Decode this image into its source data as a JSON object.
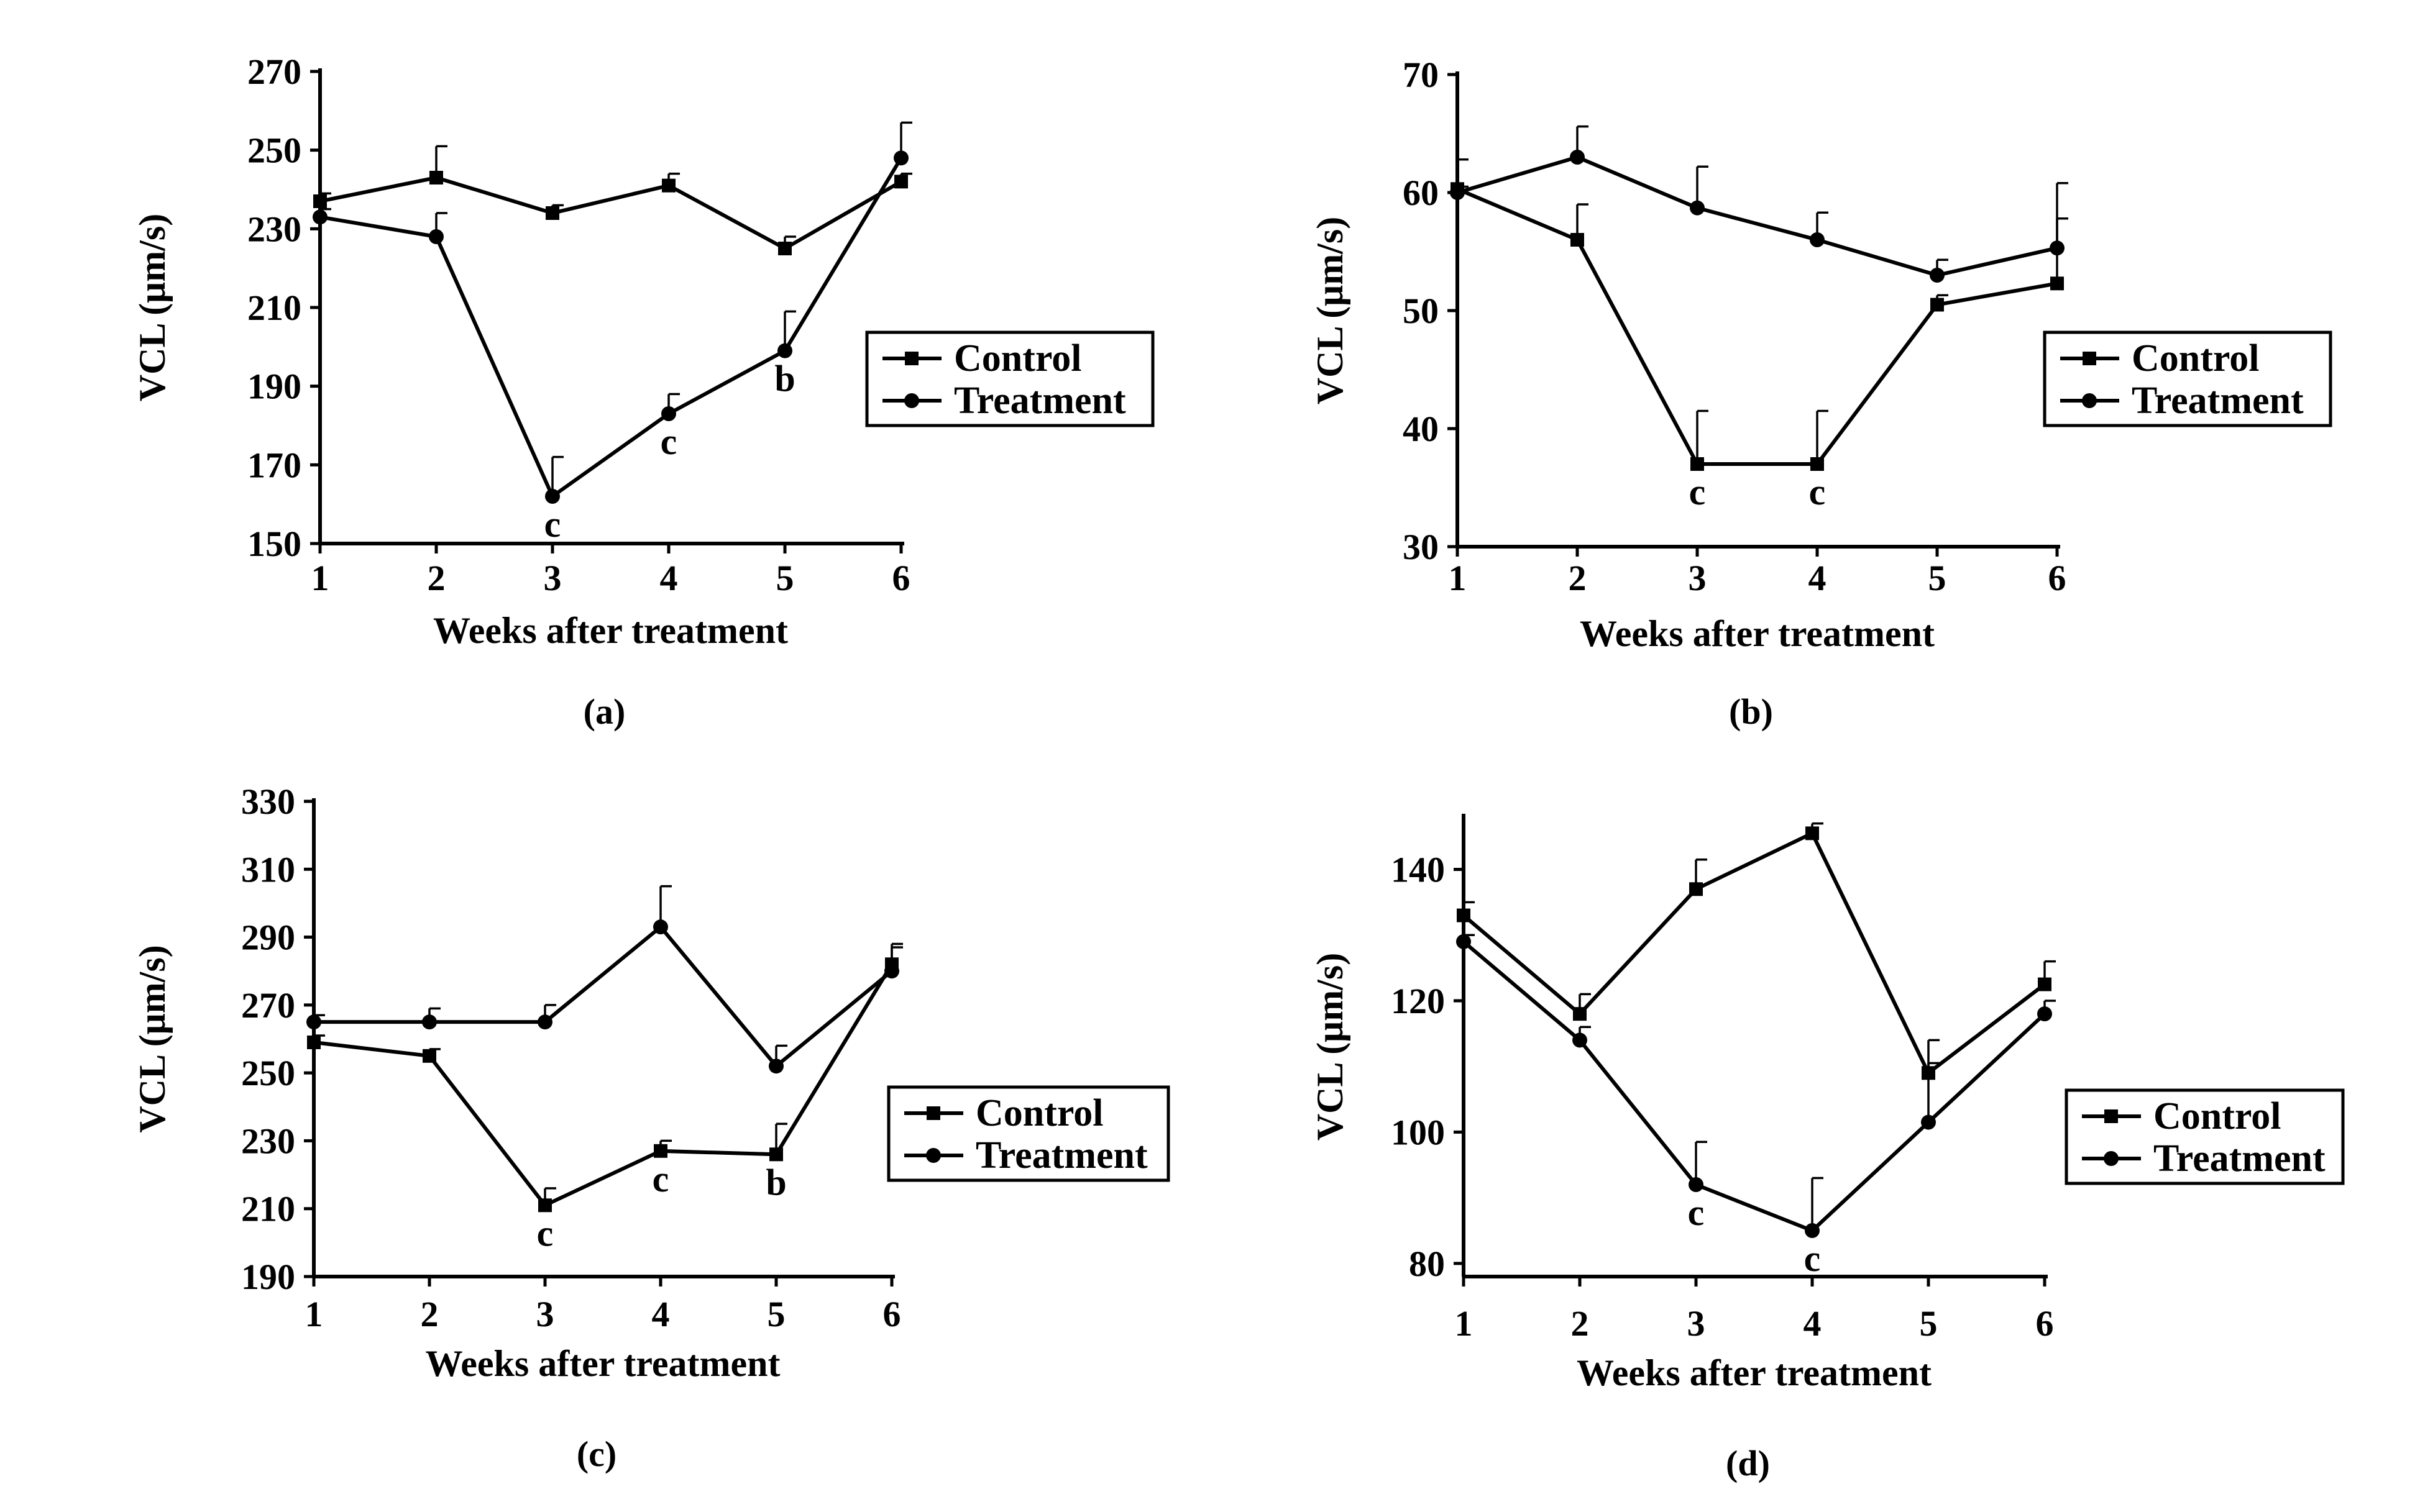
{
  "chart_data": [
    {
      "type": "line",
      "panel": "(a)",
      "xlabel": "Weeks after treatment",
      "ylabel": "VCL (μm/s)",
      "x": [
        1,
        2,
        3,
        4,
        5,
        6
      ],
      "ylim": [
        150,
        270
      ],
      "yticks": [
        150,
        170,
        190,
        210,
        230,
        250,
        270
      ],
      "legend": [
        "Control",
        "Treatment"
      ],
      "legend_position": "right",
      "grid": false,
      "series": [
        {
          "name": "Control",
          "marker": "square",
          "values": [
            237,
            243,
            234,
            241,
            225,
            242
          ],
          "errors": [
            2,
            8,
            2,
            3,
            3,
            2
          ]
        },
        {
          "name": "Treatment",
          "marker": "circle",
          "values": [
            233,
            228,
            162,
            183,
            199,
            248
          ],
          "errors": [
            2,
            6,
            10,
            5,
            10,
            9
          ]
        }
      ],
      "annotations": [
        {
          "x": 3,
          "text": "c"
        },
        {
          "x": 4,
          "text": "c"
        },
        {
          "x": 5,
          "text": "b"
        }
      ]
    },
    {
      "type": "line",
      "panel": "(b)",
      "xlabel": "Weeks after treatment",
      "ylabel": "VCL (μm/s)",
      "x": [
        1,
        2,
        3,
        4,
        5,
        6
      ],
      "ylim": [
        30,
        70
      ],
      "yticks": [
        30,
        40,
        50,
        60,
        70
      ],
      "legend": [
        "Control",
        "Treatment"
      ],
      "legend_position": "right",
      "grid": false,
      "series": [
        {
          "name": "Control",
          "marker": "square",
          "values": [
            60.3,
            56,
            37,
            37,
            50.5,
            52.3
          ],
          "errors": [
            2.5,
            3,
            4.5,
            4.5,
            0.8,
            5.5
          ]
        },
        {
          "name": "Treatment",
          "marker": "circle",
          "values": [
            60,
            63,
            58.7,
            56,
            53,
            55.3
          ],
          "errors": [
            0.5,
            2.6,
            3.5,
            2.3,
            1.3,
            5.5
          ]
        }
      ],
      "annotations": [
        {
          "x": 3,
          "text": "c"
        },
        {
          "x": 4,
          "text": "c"
        }
      ]
    },
    {
      "type": "line",
      "panel": "(c)",
      "xlabel": "Weeks after treatment",
      "ylabel": "VCL (μm/s)",
      "x": [
        1,
        2,
        3,
        4,
        5,
        6
      ],
      "ylim": [
        190,
        330
      ],
      "yticks": [
        190,
        210,
        230,
        250,
        270,
        290,
        310,
        330
      ],
      "legend": [
        "Control",
        "Treatment"
      ],
      "legend_position": "right",
      "grid": false,
      "series": [
        {
          "name": "Control",
          "marker": "square",
          "values": [
            259,
            255,
            211,
            227,
            226,
            282
          ],
          "errors": [
            2,
            2,
            5,
            3,
            9,
            6
          ]
        },
        {
          "name": "Treatment",
          "marker": "circle",
          "values": [
            265,
            265,
            265,
            293,
            252,
            280
          ],
          "errors": [
            2,
            4,
            5,
            12,
            6,
            7
          ]
        }
      ],
      "annotations": [
        {
          "x": 3,
          "text": "c"
        },
        {
          "x": 4,
          "text": "c"
        },
        {
          "x": 5,
          "text": "b"
        }
      ]
    },
    {
      "type": "line",
      "panel": "(d)",
      "xlabel": "Weeks after treatment",
      "ylabel": "VCL (μm/s)",
      "x": [
        1,
        2,
        3,
        4,
        5,
        6
      ],
      "ylim": [
        78,
        148
      ],
      "yticks": [
        80,
        100,
        120,
        140
      ],
      "legend": [
        "Control",
        "Treatment"
      ],
      "legend_position": "right",
      "grid": false,
      "series": [
        {
          "name": "Control",
          "marker": "square",
          "values": [
            133,
            118,
            137,
            145.5,
            109,
            122.5
          ],
          "errors": [
            2,
            3,
            4.5,
            1.5,
            5,
            3.5
          ]
        },
        {
          "name": "Treatment",
          "marker": "circle",
          "values": [
            129,
            114,
            92,
            85,
            101.5,
            118
          ],
          "errors": [
            1,
            2,
            6.5,
            8,
            9,
            2
          ]
        }
      ],
      "annotations": [
        {
          "x": 3,
          "text": "c"
        },
        {
          "x": 4,
          "text": "c"
        }
      ]
    }
  ]
}
